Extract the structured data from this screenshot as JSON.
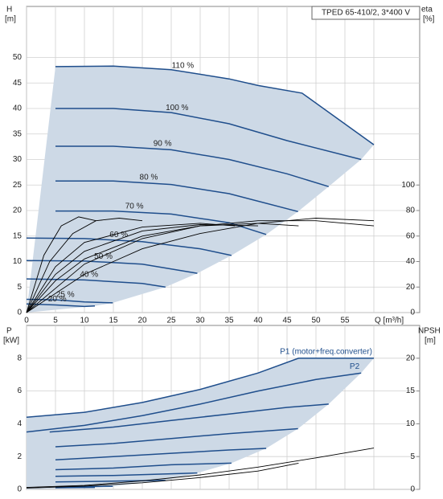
{
  "chart_data": [
    {
      "type": "line",
      "title": "TPED 65-410/2, 3*400 V",
      "ylabel": "H",
      "yunit": "[m]",
      "y2label": "eta",
      "y2unit": "[%]",
      "xlabel": "Q [m³/h]",
      "xlim": [
        0,
        60
      ],
      "xticks": [
        0,
        5,
        10,
        15,
        20,
        25,
        30,
        35,
        40,
        45,
        50,
        55
      ],
      "ylim": [
        0,
        60
      ],
      "yticks": [
        0,
        5,
        10,
        15,
        20,
        25,
        30,
        35,
        40,
        45,
        50
      ],
      "y2lim": [
        0,
        240
      ],
      "y2ticks": [
        0,
        20,
        40,
        60,
        80,
        100
      ],
      "grid": true,
      "area_color": "#cdd9e6",
      "series": [
        {
          "name": "110 %",
          "color": "#1f4e8c",
          "x": [
            5,
            15,
            25,
            35,
            40,
            47.6,
            60
          ],
          "values": [
            48.2,
            48.3,
            47.6,
            45.8,
            44.5,
            43,
            32.9
          ]
        },
        {
          "name": "100 %",
          "color": "#1f4e8c",
          "x": [
            5,
            15,
            25,
            35,
            45,
            57.8
          ],
          "values": [
            40,
            40,
            39.2,
            37,
            33.7,
            30
          ]
        },
        {
          "name": "90 %",
          "color": "#1f4e8c",
          "x": [
            5,
            15,
            25,
            35,
            45,
            52.2
          ],
          "values": [
            32.6,
            32.6,
            31.9,
            30,
            27.2,
            24.7
          ]
        },
        {
          "name": "80 %",
          "color": "#1f4e8c",
          "x": [
            5,
            15,
            25,
            35,
            46.9
          ],
          "values": [
            25.8,
            25.8,
            25.1,
            23.3,
            19.8
          ]
        },
        {
          "name": "70 %",
          "color": "#1f4e8c",
          "x": [
            5,
            15,
            25,
            35,
            41.4
          ],
          "values": [
            19.9,
            19.9,
            19.3,
            17.6,
            15.3
          ]
        },
        {
          "name": "60 %",
          "color": "#1f4e8c",
          "x": [
            0,
            10,
            20,
            30,
            35.4
          ],
          "values": [
            14.6,
            14.5,
            13.9,
            12.5,
            11.2
          ]
        },
        {
          "name": "50 %",
          "color": "#1f4e8c",
          "x": [
            0,
            10,
            20,
            29.5
          ],
          "values": [
            10.2,
            10.1,
            9.5,
            7.7
          ]
        },
        {
          "name": "40 %",
          "color": "#1f4e8c",
          "x": [
            0,
            10,
            20,
            24
          ],
          "values": [
            6.6,
            6.4,
            5.7,
            5
          ]
        },
        {
          "name": "25 %",
          "color": "#1f4e8c",
          "x": [
            0,
            5,
            10,
            14.9
          ],
          "values": [
            2.6,
            2.5,
            2.1,
            1.9
          ]
        },
        {
          "name": "20 %",
          "color": "#1f4e8c",
          "x": [
            0,
            5,
            10,
            11.8
          ],
          "values": [
            1.7,
            1.5,
            1.2,
            1.3
          ]
        },
        {
          "color": "#000000",
          "axis": "y2",
          "x": [
            0,
            10,
            20,
            30,
            40,
            50,
            60
          ],
          "values": [
            0,
            38,
            58,
            68,
            72,
            72,
            68
          ]
        },
        {
          "color": "#000000",
          "axis": "y2",
          "x": [
            0,
            5,
            10,
            20,
            30,
            40,
            47
          ],
          "values": [
            0,
            25,
            42,
            60,
            68,
            70,
            68
          ]
        },
        {
          "color": "#000000",
          "axis": "y2",
          "x": [
            0,
            5,
            10,
            20,
            30,
            40
          ],
          "values": [
            0,
            30,
            48,
            64,
            69,
            68
          ]
        },
        {
          "color": "#000000",
          "axis": "y2",
          "x": [
            0,
            5,
            10,
            20,
            30,
            36
          ],
          "values": [
            0,
            36,
            55,
            67,
            70,
            68
          ]
        },
        {
          "color": "#000000",
          "axis": "y2",
          "x": [
            0,
            3,
            6,
            9,
            12
          ],
          "values": [
            0,
            45,
            68,
            75,
            72
          ]
        },
        {
          "color": "#000000",
          "axis": "y2",
          "x": [
            0,
            4,
            8,
            12,
            16,
            20
          ],
          "values": [
            0,
            40,
            62,
            72,
            74,
            72
          ]
        },
        {
          "color": "#000000",
          "axis": "y2",
          "x": [
            0,
            10,
            20,
            30,
            40,
            50,
            60
          ],
          "values": [
            0,
            30,
            50,
            62,
            70,
            74,
            72
          ]
        }
      ]
    },
    {
      "type": "line",
      "ylabel": "P",
      "yunit": "[kW]",
      "y2label": "NPSH",
      "y2unit": "[m]",
      "xlim": [
        0,
        60
      ],
      "xticks": [
        0,
        5,
        10,
        15,
        20,
        25,
        30,
        35,
        40,
        45,
        50,
        55
      ],
      "ylim": [
        0,
        10
      ],
      "yticks": [
        0,
        2,
        4,
        6,
        8
      ],
      "y2lim": [
        0,
        25
      ],
      "y2ticks": [
        0,
        5,
        10,
        15,
        20
      ],
      "grid": true,
      "area_color": "#cdd9e6",
      "series": [
        {
          "name": "P1 (motor+freq.converter)",
          "color": "#1f4e8c",
          "x": [
            0,
            10,
            20,
            30,
            40,
            47,
            60
          ],
          "values": [
            4.4,
            4.7,
            5.3,
            6.1,
            7.1,
            8,
            8
          ]
        },
        {
          "name": "P2",
          "color": "#1f4e8c",
          "x": [
            0,
            10,
            20,
            30,
            40,
            50,
            57.8
          ],
          "values": [
            3.5,
            3.9,
            4.5,
            5.2,
            6,
            6.7,
            7.1
          ]
        },
        {
          "color": "#1f4e8c",
          "x": [
            4,
            15,
            25,
            35,
            45,
            52.2
          ],
          "values": [
            3.5,
            3.8,
            4.2,
            4.6,
            5,
            5.2
          ]
        },
        {
          "color": "#1f4e8c",
          "x": [
            5,
            15,
            25,
            35,
            46.9
          ],
          "values": [
            2.6,
            2.8,
            3.1,
            3.4,
            3.7
          ]
        },
        {
          "color": "#1f4e8c",
          "x": [
            5,
            15,
            25,
            35,
            41.4
          ],
          "values": [
            1.8,
            2,
            2.2,
            2.4,
            2.5
          ]
        },
        {
          "color": "#1f4e8c",
          "x": [
            5,
            15,
            25,
            35.4
          ],
          "values": [
            1.2,
            1.3,
            1.5,
            1.6
          ]
        },
        {
          "color": "#1f4e8c",
          "x": [
            5,
            15,
            25,
            29.5
          ],
          "values": [
            0.8,
            0.85,
            0.95,
            1
          ]
        },
        {
          "color": "#1f4e8c",
          "x": [
            5,
            15,
            24
          ],
          "values": [
            0.45,
            0.5,
            0.55
          ]
        },
        {
          "color": "#1f4e8c",
          "x": [
            5,
            14.9
          ],
          "values": [
            0.15,
            0.18
          ]
        },
        {
          "color": "#1f4e8c",
          "x": [
            5,
            11.8
          ],
          "values": [
            0.1,
            0.12
          ]
        },
        {
          "color": "#000000",
          "axis": "y2",
          "x": [
            0,
            10,
            20,
            30,
            40,
            50,
            60
          ],
          "values": [
            0.3,
            0.6,
            1.3,
            2.2,
            3.4,
            4.8,
            6.3
          ]
        },
        {
          "color": "#000000",
          "axis": "y2",
          "x": [
            0,
            10,
            20,
            30,
            40,
            47
          ],
          "values": [
            0.2,
            0.5,
            1,
            1.8,
            2.8,
            4
          ]
        }
      ]
    }
  ]
}
